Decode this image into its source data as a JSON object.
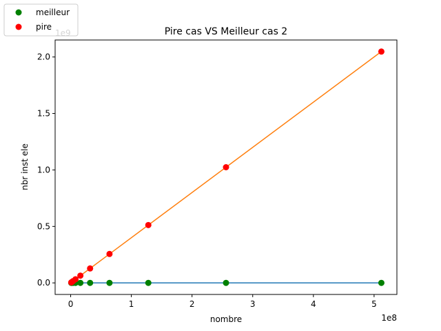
{
  "chart_data": {
    "type": "scatter",
    "title": "Pire cas VS Meilleur cas 2",
    "xlabel": "nombre",
    "ylabel": "nbr inst ele",
    "x_offset_text": "1e8",
    "y_offset_text": "1e9",
    "xlim": [
      -25600000,
      537600000
    ],
    "ylim": [
      -102400000,
      2150400000
    ],
    "x_ticks": [
      0,
      100000000,
      200000000,
      300000000,
      400000000,
      500000000
    ],
    "x_tick_labels": [
      "0",
      "1",
      "2",
      "3",
      "4",
      "5"
    ],
    "y_ticks": [
      0,
      500000000,
      1000000000,
      1500000000,
      2000000000
    ],
    "y_tick_labels": [
      "0.0",
      "0.5",
      "1.0",
      "1.5",
      "2.0"
    ],
    "grid": false,
    "legend_position": "upper-left-outside",
    "series": [
      {
        "name": "meilleur",
        "marker_color": "#008000",
        "line_color": "#1f77b4",
        "x": [
          1000000,
          2000000,
          4000000,
          8000000,
          16000000,
          32000000,
          64000000,
          128000000,
          256000000,
          512000000
        ],
        "y": [
          0,
          0,
          0,
          0,
          0,
          0,
          0,
          0,
          0,
          0
        ]
      },
      {
        "name": "pire",
        "marker_color": "#ff0000",
        "line_color": "#ff7f0e",
        "x": [
          1000000,
          2000000,
          4000000,
          8000000,
          16000000,
          32000000,
          64000000,
          128000000,
          256000000,
          512000000
        ],
        "y": [
          4000000,
          8000000,
          16000000,
          32000000,
          64000000,
          128000000,
          256000000,
          512000000,
          1024000000,
          2048000000
        ]
      }
    ]
  }
}
